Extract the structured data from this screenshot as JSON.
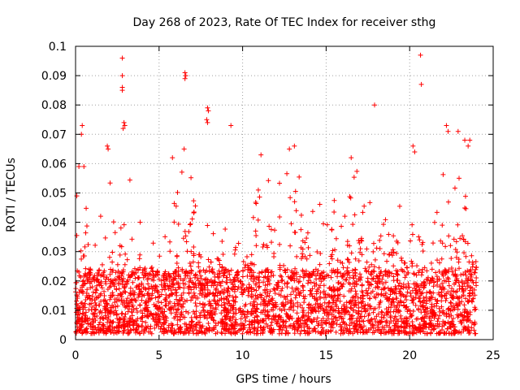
{
  "chart_data": {
    "type": "scatter",
    "title": "Day 268 of 2023, Rate Of TEC Index for receiver sthg",
    "xlabel": "GPS time / hours",
    "ylabel": "ROTI / TECUs",
    "xlim": [
      0,
      25
    ],
    "ylim": [
      0,
      0.1
    ],
    "x_ticks": [
      0,
      5,
      10,
      15,
      20,
      25
    ],
    "x_tick_labels": [
      "0",
      "5",
      "10",
      "15",
      "20",
      "25"
    ],
    "y_ticks": [
      0,
      0.01,
      0.02,
      0.03,
      0.04,
      0.05,
      0.06,
      0.07,
      0.08,
      0.09,
      0.1
    ],
    "y_tick_labels": [
      "0",
      "0.01",
      "0.02",
      "0.03",
      "0.04",
      "0.05",
      "0.06",
      "0.07",
      "0.08",
      "0.09",
      "0.1"
    ],
    "grid": true,
    "marker": "+",
    "marker_color": "#ff0000",
    "series": [
      {
        "name": "ROTI",
        "color": "#ff0000",
        "note_outliers": "highest isolated values read from the plot",
        "outliers": [
          {
            "x": 2.8,
            "y": 0.096
          },
          {
            "x": 2.8,
            "y": 0.09
          },
          {
            "x": 2.8,
            "y": 0.086
          },
          {
            "x": 2.8,
            "y": 0.085
          },
          {
            "x": 2.9,
            "y": 0.074
          },
          {
            "x": 2.95,
            "y": 0.073
          },
          {
            "x": 2.85,
            "y": 0.072
          },
          {
            "x": 6.55,
            "y": 0.091
          },
          {
            "x": 6.6,
            "y": 0.09
          },
          {
            "x": 6.55,
            "y": 0.089
          },
          {
            "x": 7.9,
            "y": 0.079
          },
          {
            "x": 7.95,
            "y": 0.078
          },
          {
            "x": 7.85,
            "y": 0.075
          },
          {
            "x": 7.9,
            "y": 0.074
          },
          {
            "x": 9.3,
            "y": 0.073
          },
          {
            "x": 6.5,
            "y": 0.065
          },
          {
            "x": 0.4,
            "y": 0.073
          },
          {
            "x": 0.35,
            "y": 0.07
          },
          {
            "x": 13.1,
            "y": 0.066
          },
          {
            "x": 12.8,
            "y": 0.065
          },
          {
            "x": 11.1,
            "y": 0.063
          },
          {
            "x": 16.5,
            "y": 0.062
          },
          {
            "x": 17.9,
            "y": 0.08
          },
          {
            "x": 20.65,
            "y": 0.097
          },
          {
            "x": 20.7,
            "y": 0.087
          },
          {
            "x": 20.2,
            "y": 0.066
          },
          {
            "x": 20.3,
            "y": 0.064
          },
          {
            "x": 22.2,
            "y": 0.073
          },
          {
            "x": 22.3,
            "y": 0.071
          },
          {
            "x": 22.9,
            "y": 0.071
          },
          {
            "x": 23.3,
            "y": 0.068
          },
          {
            "x": 23.6,
            "y": 0.068
          },
          {
            "x": 23.5,
            "y": 0.066
          },
          {
            "x": 1.9,
            "y": 0.066
          },
          {
            "x": 1.95,
            "y": 0.065
          },
          {
            "x": 5.8,
            "y": 0.062
          },
          {
            "x": 0.2,
            "y": 0.059
          },
          {
            "x": 0.5,
            "y": 0.059
          }
        ],
        "envelope": {
          "note": "approximate upper extent of the dense point cloud in ROTI units, by hour",
          "hours": [
            0,
            0.5,
            1,
            1.5,
            2,
            2.5,
            3,
            3.5,
            4,
            4.5,
            5,
            5.5,
            6,
            6.5,
            7,
            7.5,
            8,
            8.5,
            9,
            9.5,
            10,
            10.5,
            11,
            11.5,
            12,
            12.5,
            13,
            13.5,
            14,
            14.5,
            15,
            15.5,
            16,
            16.5,
            17,
            17.5,
            18,
            18.5,
            19,
            19.5,
            20,
            20.5,
            21,
            21.5,
            22,
            22.5,
            23,
            23.5,
            24
          ],
          "upper": [
            0.058,
            0.06,
            0.04,
            0.042,
            0.055,
            0.058,
            0.06,
            0.05,
            0.04,
            0.045,
            0.04,
            0.038,
            0.055,
            0.06,
            0.055,
            0.05,
            0.058,
            0.05,
            0.045,
            0.038,
            0.04,
            0.045,
            0.058,
            0.055,
            0.06,
            0.062,
            0.06,
            0.058,
            0.055,
            0.05,
            0.045,
            0.048,
            0.055,
            0.06,
            0.058,
            0.05,
            0.048,
            0.045,
            0.05,
            0.045,
            0.04,
            0.045,
            0.04,
            0.045,
            0.058,
            0.06,
            0.062,
            0.06,
            0.055
          ],
          "dense_upper": [
            0.025,
            0.03,
            0.02,
            0.022,
            0.028,
            0.032,
            0.03,
            0.025,
            0.024,
            0.024,
            0.022,
            0.02,
            0.028,
            0.032,
            0.03,
            0.028,
            0.03,
            0.026,
            0.024,
            0.022,
            0.024,
            0.026,
            0.032,
            0.035,
            0.038,
            0.04,
            0.038,
            0.034,
            0.032,
            0.03,
            0.026,
            0.028,
            0.034,
            0.036,
            0.035,
            0.03,
            0.03,
            0.028,
            0.03,
            0.026,
            0.024,
            0.026,
            0.024,
            0.026,
            0.032,
            0.035,
            0.036,
            0.034,
            0.03
          ],
          "floor": 0.002
        }
      }
    ]
  }
}
